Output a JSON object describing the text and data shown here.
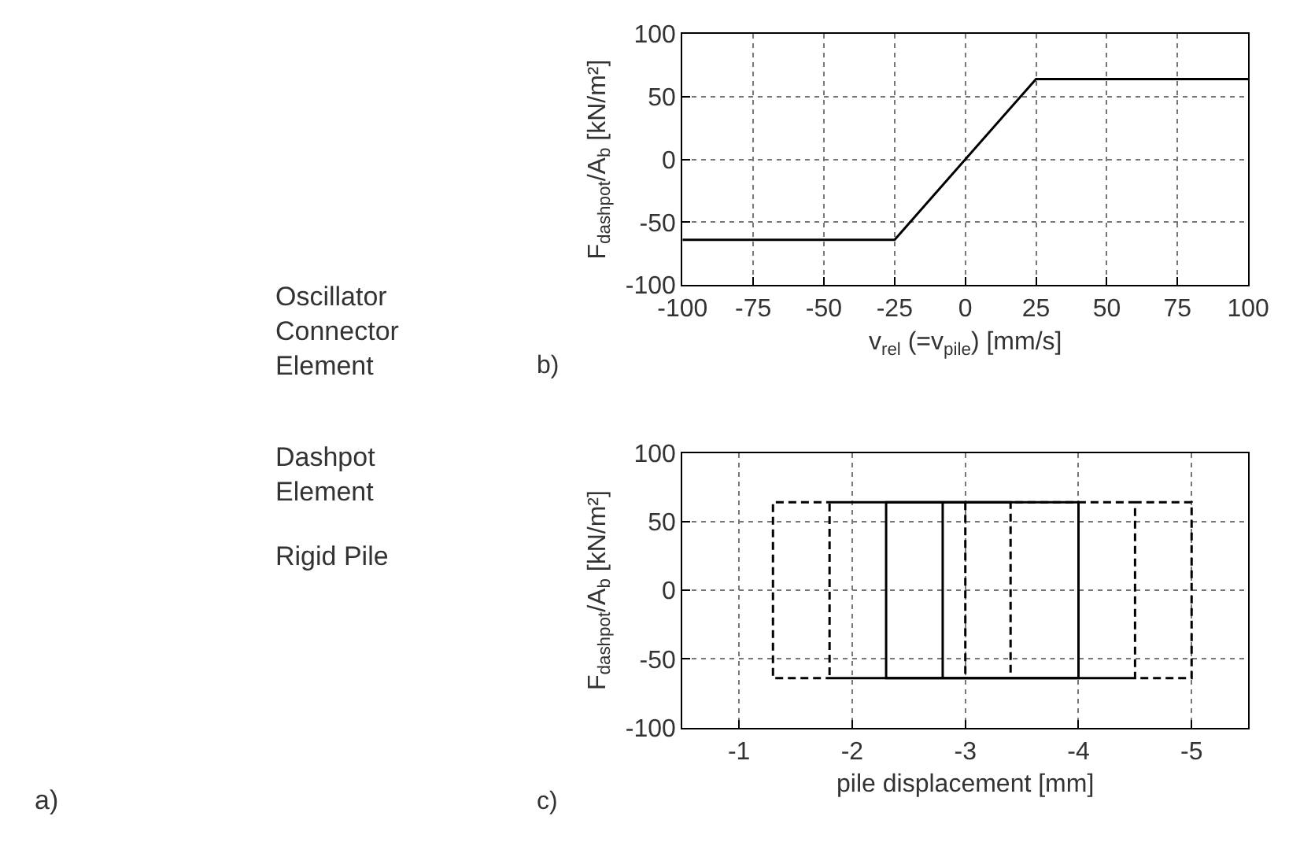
{
  "chart_data": [
    {
      "type": "other",
      "annotations": [
        "Oscillator",
        "Connector\nElement",
        "Dashpot\nElement",
        "Rigid Pile",
        "a)"
      ]
    },
    {
      "type": "line",
      "xlabel": "v$_{rel}$ (=v$_{pile}$) [mm/s]",
      "ylabel": "F$_{dashpot}$/A$_{b}$ [kN/m²]",
      "annotations": [
        "b)"
      ],
      "xlim": [
        -100,
        100
      ],
      "xticks": [
        -100,
        -75,
        -50,
        -25,
        0,
        25,
        50,
        75,
        100
      ],
      "ylim": [
        -100,
        100
      ],
      "yticks": [
        -100,
        -50,
        0,
        50,
        100
      ],
      "grid": true,
      "series": [
        {
          "color": "#000000",
          "line_style": "solid",
          "x": [
            -100,
            -25,
            25,
            100
          ],
          "values": [
            -64,
            -64,
            64,
            64
          ]
        }
      ]
    },
    {
      "type": "line",
      "xlabel": "pile displacement [mm]",
      "ylabel": "F$_{dashpot}$/A$_{b}$ [kN/m²]",
      "annotations": [
        "c)"
      ],
      "xlim": [
        -0.5,
        -5.5
      ],
      "xticks": [
        -1,
        -2,
        -3,
        -4,
        -5
      ],
      "ylim": [
        -100,
        100
      ],
      "yticks": [
        -100,
        -50,
        0,
        50,
        100
      ],
      "grid": true,
      "series": [
        {
          "color": "#000000",
          "line_style": "dashed",
          "x": [
            -3.0,
            -3.0,
            -3.4,
            -3.4,
            -1.8,
            -1.8,
            -4.5,
            -4.5,
            -1.3,
            -1.3,
            -5.0,
            -5.0,
            -4.5
          ],
          "values": [
            64,
            -64,
            -64,
            64,
            64,
            -64,
            -64,
            64,
            64,
            -64,
            -64,
            64,
            64
          ]
        },
        {
          "color": "#000000",
          "line_style": "solid",
          "x": [
            -2.8,
            -2.8,
            -4.0,
            -4.0,
            -2.3,
            -2.3,
            -2.8
          ],
          "values": [
            64,
            -64,
            -64,
            64,
            64,
            -64,
            -64
          ]
        }
      ]
    }
  ]
}
